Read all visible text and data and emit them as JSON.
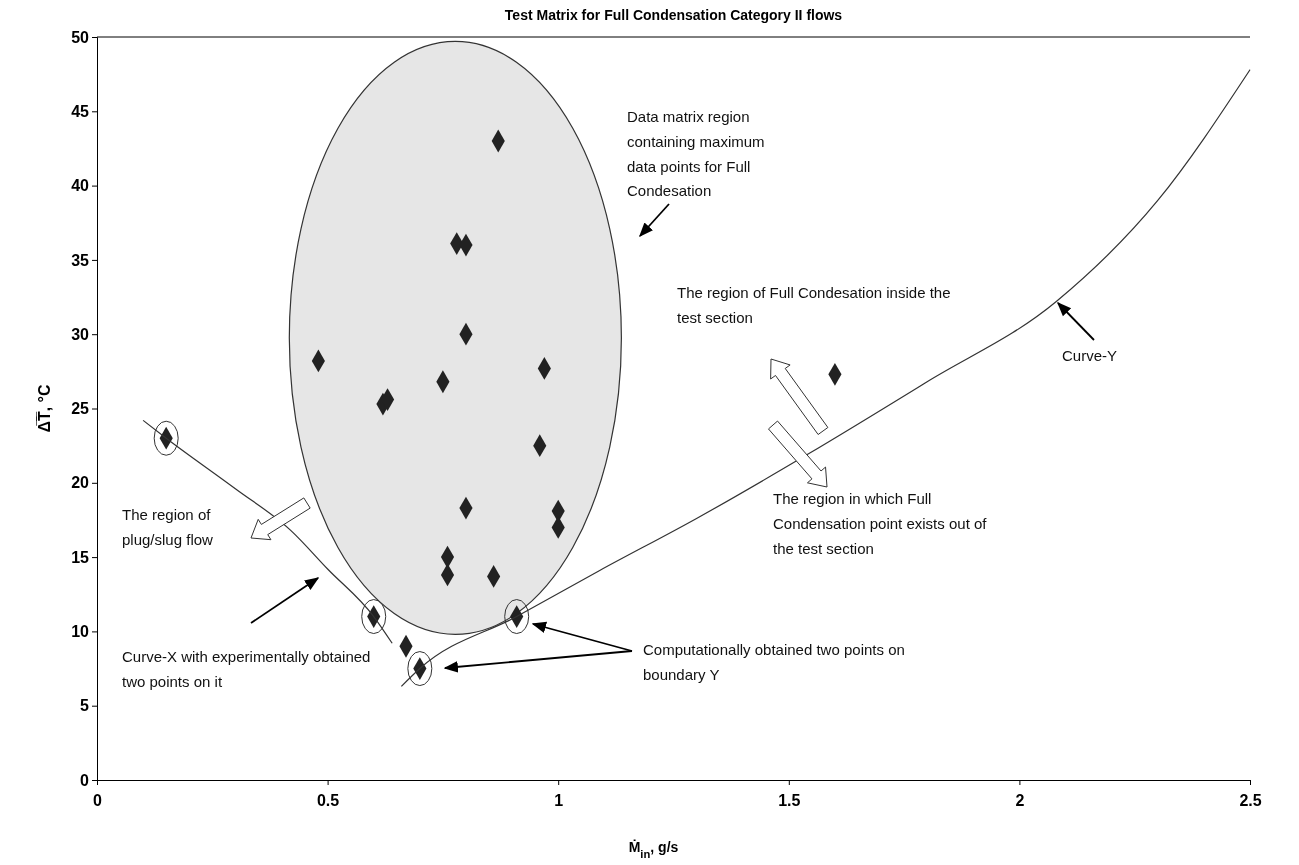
{
  "chart_data": {
    "type": "scatter",
    "title": "Test Matrix for Full Condensation Category II flows",
    "xlabel": "Ṁ$_{in}$, g/s",
    "ylabel": "Δ̅T̅, °C",
    "xlim": [
      0,
      2.5
    ],
    "xticks": [
      0,
      0.5,
      1,
      1.5,
      2,
      2.5
    ],
    "ylim": [
      0,
      50
    ],
    "yticks": [
      0,
      5,
      10,
      15,
      20,
      25,
      30,
      35,
      40,
      45,
      50
    ],
    "grid": false,
    "series": [
      {
        "marker": "diamond",
        "color": "#222222",
        "x": [
          0.15,
          0.48,
          0.62,
          0.63,
          0.75,
          0.78,
          0.8,
          0.8,
          0.87,
          0.97,
          0.96,
          0.8,
          1.0,
          1.0,
          0.76,
          0.76,
          0.86,
          0.6,
          0.67,
          0.7,
          0.91,
          1.6
        ],
        "values": [
          23,
          28.2,
          25.3,
          25.6,
          26.8,
          36.1,
          36,
          30,
          43,
          27.7,
          22.5,
          18.3,
          18.1,
          17,
          15,
          13.8,
          13.7,
          11,
          9,
          7.5,
          11,
          27.3
        ]
      },
      {
        "type": "line",
        "marker": "none",
        "color": "#333333",
        "x": [
          0.1,
          0.15,
          0.3,
          0.42,
          0.5,
          0.6,
          0.64
        ],
        "values": [
          24.2,
          23,
          19.6,
          16.8,
          14.2,
          11,
          9.2
        ]
      },
      {
        "type": "line",
        "marker": "none",
        "color": "#333333",
        "x": [
          0.66,
          0.7,
          0.91,
          1.09,
          1.3,
          1.54,
          1.8,
          2.08,
          2.3,
          2.5
        ],
        "values": [
          6.3,
          7.5,
          11,
          14.1,
          17.6,
          21.9,
          26.8,
          32.2,
          39,
          47.8
        ]
      }
    ],
    "annotations": [
      "Data matrix region containing maximum data points for Full Condesation",
      "The region of Full Condesation inside the test section",
      "Curve-Y",
      "The region in which Full Condensation point exists out of the test section",
      "The region of plug/slug flow",
      "Curve-X with experimentally obtained two points on it",
      "Computationally obtained two points on boundary Y"
    ]
  }
}
